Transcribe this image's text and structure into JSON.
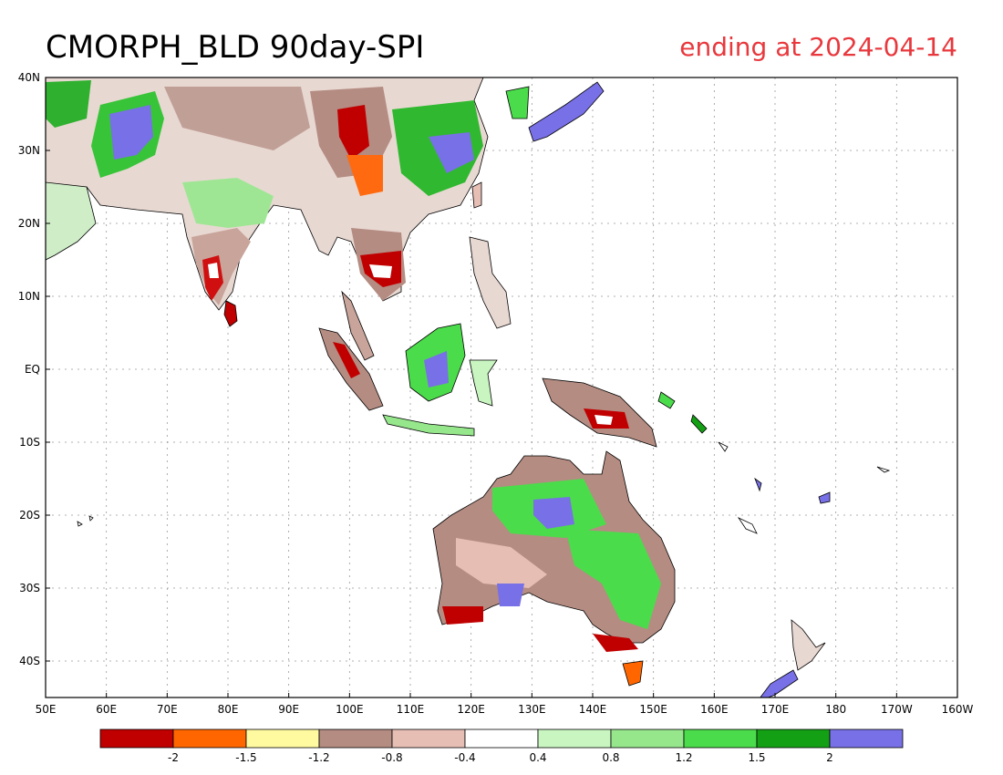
{
  "title": "CMORPH_BLD 90day-SPI",
  "subtitle": "ending at 2024-04-14",
  "subtitle_color": "#e8383d",
  "map": {
    "lon_range": [
      50,
      200
    ],
    "lat_range": [
      -45,
      40
    ],
    "x_ticks": [
      {
        "label": "50E",
        "lon": 50
      },
      {
        "label": "60E",
        "lon": 60
      },
      {
        "label": "70E",
        "lon": 70
      },
      {
        "label": "80E",
        "lon": 80
      },
      {
        "label": "90E",
        "lon": 90
      },
      {
        "label": "100E",
        "lon": 100
      },
      {
        "label": "110E",
        "lon": 110
      },
      {
        "label": "120E",
        "lon": 120
      },
      {
        "label": "130E",
        "lon": 130
      },
      {
        "label": "140E",
        "lon": 140
      },
      {
        "label": "150E",
        "lon": 150
      },
      {
        "label": "160E",
        "lon": 160
      },
      {
        "label": "170E",
        "lon": 170
      },
      {
        "label": "180",
        "lon": 180
      },
      {
        "label": "170W",
        "lon": 190
      },
      {
        "label": "160W",
        "lon": 200
      }
    ],
    "y_ticks": [
      {
        "label": "40N",
        "lat": 40
      },
      {
        "label": "30N",
        "lat": 30
      },
      {
        "label": "20N",
        "lat": 20
      },
      {
        "label": "10N",
        "lat": 10
      },
      {
        "label": "EQ",
        "lat": 0
      },
      {
        "label": "10S",
        "lat": -10
      },
      {
        "label": "20S",
        "lat": -20
      },
      {
        "label": "30S",
        "lat": -30
      },
      {
        "label": "40S",
        "lat": -40
      }
    ],
    "gridlines": true
  },
  "colorbar": {
    "colors": [
      "#c00000",
      "#ff6600",
      "#fffaa0",
      "#b48c82",
      "#e6beb4",
      "#ffffff",
      "#c8f5c0",
      "#96e68c",
      "#4bdc4b",
      "#14a014",
      "#7870e6"
    ],
    "labels": [
      "-2",
      "-1.5",
      "-1.2",
      "-0.8",
      "-0.4",
      "0.4",
      "0.8",
      "1.2",
      "1.5",
      "2"
    ]
  }
}
